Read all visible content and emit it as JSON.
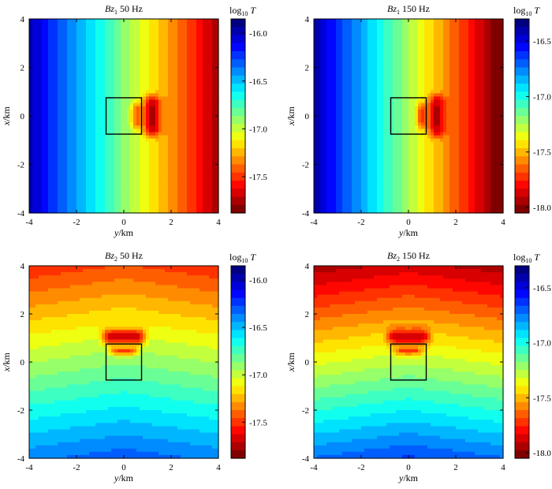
{
  "chart_data": [
    {
      "type": "heatmap",
      "title_main": "Bz",
      "title_sub": "1",
      "title_rest": " 50 Hz",
      "xlabel_main": "y",
      "xlabel_rest": "/km",
      "ylabel_main": "x",
      "ylabel_rest": "/km",
      "xlim": [
        -4,
        4
      ],
      "ylim": [
        -4,
        4
      ],
      "xticks": [
        -4,
        -2,
        0,
        2,
        4
      ],
      "yticks": [
        -4,
        -2,
        0,
        2,
        4
      ],
      "xtick_labels": [
        "-4",
        "-2",
        "0",
        "2",
        "4"
      ],
      "ytick_labels": [
        "-4",
        "-2",
        "0",
        "2",
        "4"
      ],
      "colorbar": {
        "label_main": "log",
        "label_sub": "10",
        "label_unit": " T",
        "range": [
          -17.88,
          -15.85
        ],
        "ticks": [
          -16.0,
          -16.5,
          -17.0,
          -17.5
        ],
        "tick_labels": [
          "-16.0",
          "-16.5",
          "-17.0",
          "-17.5"
        ],
        "colormap": "jet-reversed"
      },
      "anomaly_box": {
        "y": [
          -0.75,
          0.75
        ],
        "x": [
          -0.75,
          0.75
        ]
      },
      "field": {
        "component": "bz1",
        "base": -16.0,
        "gradient": -0.22,
        "anomaly_peak": -17.85
      }
    },
    {
      "type": "heatmap",
      "title_main": "Bz",
      "title_sub": "1",
      "title_rest": " 150 Hz",
      "xlabel_main": "y",
      "xlabel_rest": "/km",
      "ylabel_main": "x",
      "ylabel_rest": "/km",
      "xlim": [
        -4,
        4
      ],
      "ylim": [
        -4,
        4
      ],
      "xticks": [
        -4,
        -2,
        0,
        2,
        4
      ],
      "yticks": [
        -4,
        -2,
        0,
        2,
        4
      ],
      "xtick_labels": [
        "-4",
        "-2",
        "0",
        "2",
        "4"
      ],
      "ytick_labels": [
        "-4",
        "-2",
        "0",
        "2",
        "4"
      ],
      "colorbar": {
        "label_main": "log",
        "label_sub": "10",
        "label_unit": " T",
        "range": [
          -18.05,
          -16.3
        ],
        "ticks": [
          -16.5,
          -17.0,
          -17.5,
          -18.0
        ],
        "tick_labels": [
          "-16.5",
          "-17.0",
          "-17.5",
          "-18.0"
        ],
        "colormap": "jet-reversed"
      },
      "anomaly_box": {
        "y": [
          -0.75,
          0.75
        ],
        "x": [
          -0.75,
          0.75
        ]
      },
      "field": {
        "component": "bz1",
        "base": -16.4,
        "gradient": -0.21,
        "anomaly_peak": -18.0
      }
    },
    {
      "type": "heatmap",
      "title_main": "Bz",
      "title_sub": "2",
      "title_rest": " 50 Hz",
      "xlabel_main": "y",
      "xlabel_rest": "/km",
      "ylabel_main": "x",
      "ylabel_rest": "/km",
      "xlim": [
        -4,
        4
      ],
      "ylim": [
        -4,
        4
      ],
      "xticks": [
        -4,
        -2,
        0,
        2,
        4
      ],
      "yticks": [
        -4,
        -2,
        0,
        2,
        4
      ],
      "xtick_labels": [
        "-4",
        "-2",
        "0",
        "2",
        "4"
      ],
      "ytick_labels": [
        "-4",
        "-2",
        "0",
        "2",
        "4"
      ],
      "colorbar": {
        "label_main": "log",
        "label_sub": "10",
        "label_unit": " T",
        "range": [
          -17.88,
          -15.85
        ],
        "ticks": [
          -16.0,
          -16.5,
          -17.0,
          -17.5
        ],
        "tick_labels": [
          "-16.0",
          "-16.5",
          "-17.0",
          "-17.5"
        ],
        "colormap": "jet-reversed"
      },
      "anomaly_box": {
        "y": [
          -0.75,
          0.75
        ],
        "x": [
          -0.75,
          0.75
        ]
      },
      "field": {
        "component": "bz2",
        "base": -16.3,
        "gradient": -0.16,
        "anomaly_peak": -17.85
      }
    },
    {
      "type": "heatmap",
      "title_main": "Bz",
      "title_sub": "2",
      "title_rest": " 150 Hz",
      "xlabel_main": "y",
      "xlabel_rest": "/km",
      "ylabel_main": "x",
      "ylabel_rest": "/km",
      "xlim": [
        -4,
        4
      ],
      "ylim": [
        -4,
        4
      ],
      "xticks": [
        -4,
        -2,
        0,
        2,
        4
      ],
      "yticks": [
        -4,
        -2,
        0,
        2,
        4
      ],
      "xtick_labels": [
        "-4",
        "-2",
        "0",
        "2",
        "4"
      ],
      "ytick_labels": [
        "-4",
        "-2",
        "0",
        "2",
        "4"
      ],
      "colorbar": {
        "label_main": "log",
        "label_sub": "10",
        "label_unit": " T",
        "range": [
          -18.05,
          -16.3
        ],
        "ticks": [
          -16.5,
          -17.0,
          -17.5,
          -18.0
        ],
        "tick_labels": [
          "-16.5",
          "-17.0",
          "-17.5",
          "-18.0"
        ],
        "colormap": "jet-reversed"
      },
      "anomaly_box": {
        "y": [
          -0.75,
          0.75
        ],
        "x": [
          -0.75,
          0.75
        ]
      },
      "field": {
        "component": "bz2",
        "base": -16.65,
        "gradient": -0.17,
        "anomaly_peak": -18.0
      }
    }
  ]
}
